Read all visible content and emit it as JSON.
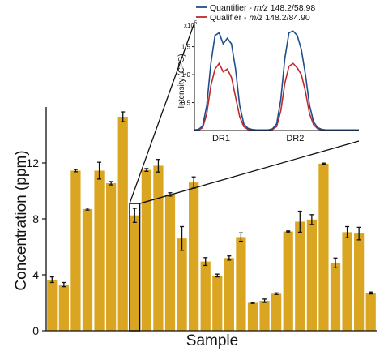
{
  "chart_data": [
    {
      "type": "bar",
      "xlabel": "Sample",
      "ylabel": "Concentration (ppm)",
      "ylim": [
        0,
        16
      ],
      "yticks": [
        0,
        4,
        8,
        12
      ],
      "bar_color": "#DAA520",
      "highlight_color": "#111111",
      "highlight_index": 7,
      "values": [
        3.65,
        3.3,
        11.45,
        8.7,
        11.45,
        10.55,
        15.3,
        8.25,
        11.5,
        11.8,
        9.75,
        6.6,
        10.6,
        4.95,
        3.95,
        5.2,
        6.7,
        2.0,
        2.15,
        2.65,
        7.1,
        7.8,
        7.95,
        11.95,
        4.85,
        7.05,
        6.95,
        2.7
      ],
      "errors": [
        0.2,
        0.15,
        0.08,
        0.07,
        0.6,
        0.12,
        0.35,
        0.5,
        0.1,
        0.45,
        0.12,
        0.85,
        0.4,
        0.28,
        0.1,
        0.15,
        0.3,
        0.04,
        0.12,
        0.06,
        0.04,
        0.75,
        0.35,
        0.04,
        0.35,
        0.4,
        0.45,
        0.07
      ]
    },
    {
      "type": "line",
      "ylabel": "Intensity (CPS)",
      "yscale_label": "x10",
      "yscale_exp": "5",
      "yticks": [
        "0.5",
        "1.0",
        "1.5"
      ],
      "categories": [
        "DR1",
        "DR2"
      ],
      "ylim": [
        0,
        1.9
      ],
      "legend_position": "top",
      "series": [
        {
          "name": "Quantifier",
          "mz_prefix": "m/z",
          "mz": "148.2/58.98",
          "color": "#1F4E8C",
          "x": [
            0,
            1,
            2,
            3,
            4,
            5,
            6,
            7,
            8,
            9,
            10,
            11,
            12,
            13,
            14,
            15,
            16,
            17,
            18,
            19,
            20,
            21,
            22,
            23,
            24,
            25,
            26,
            27,
            28,
            29,
            30,
            31,
            32,
            33,
            34,
            35,
            36,
            37,
            38,
            39,
            40
          ],
          "y": [
            0.01,
            0.02,
            0.08,
            0.45,
            1.2,
            1.7,
            1.75,
            1.55,
            1.65,
            1.55,
            1.1,
            0.45,
            0.12,
            0.04,
            0.02,
            0.01,
            0.01,
            0.01,
            0.01,
            0.03,
            0.12,
            0.55,
            1.3,
            1.75,
            1.78,
            1.7,
            1.45,
            1.0,
            0.45,
            0.15,
            0.05,
            0.02,
            0.01,
            0.01,
            0.01,
            0.01,
            0.01,
            0.01,
            0.01,
            0.01,
            0.01
          ]
        },
        {
          "name": "Qualifier",
          "mz_prefix": "m/z",
          "mz": "148.2/84.90",
          "color": "#C0282D",
          "x": [
            0,
            1,
            2,
            3,
            4,
            5,
            6,
            7,
            8,
            9,
            10,
            11,
            12,
            13,
            14,
            15,
            16,
            17,
            18,
            19,
            20,
            21,
            22,
            23,
            24,
            25,
            26,
            27,
            28,
            29,
            30,
            31,
            32,
            33,
            34,
            35,
            36,
            37,
            38,
            39,
            40
          ],
          "y": [
            0.01,
            0.01,
            0.05,
            0.3,
            0.8,
            1.1,
            1.2,
            1.05,
            1.1,
            0.95,
            0.6,
            0.25,
            0.07,
            0.02,
            0.01,
            0.01,
            0.01,
            0.01,
            0.01,
            0.02,
            0.07,
            0.35,
            0.85,
            1.15,
            1.2,
            1.12,
            1.0,
            0.7,
            0.3,
            0.1,
            0.03,
            0.01,
            0.01,
            0.01,
            0.01,
            0.01,
            0.01,
            0.01,
            0.01,
            0.01,
            0.01
          ]
        }
      ]
    }
  ]
}
